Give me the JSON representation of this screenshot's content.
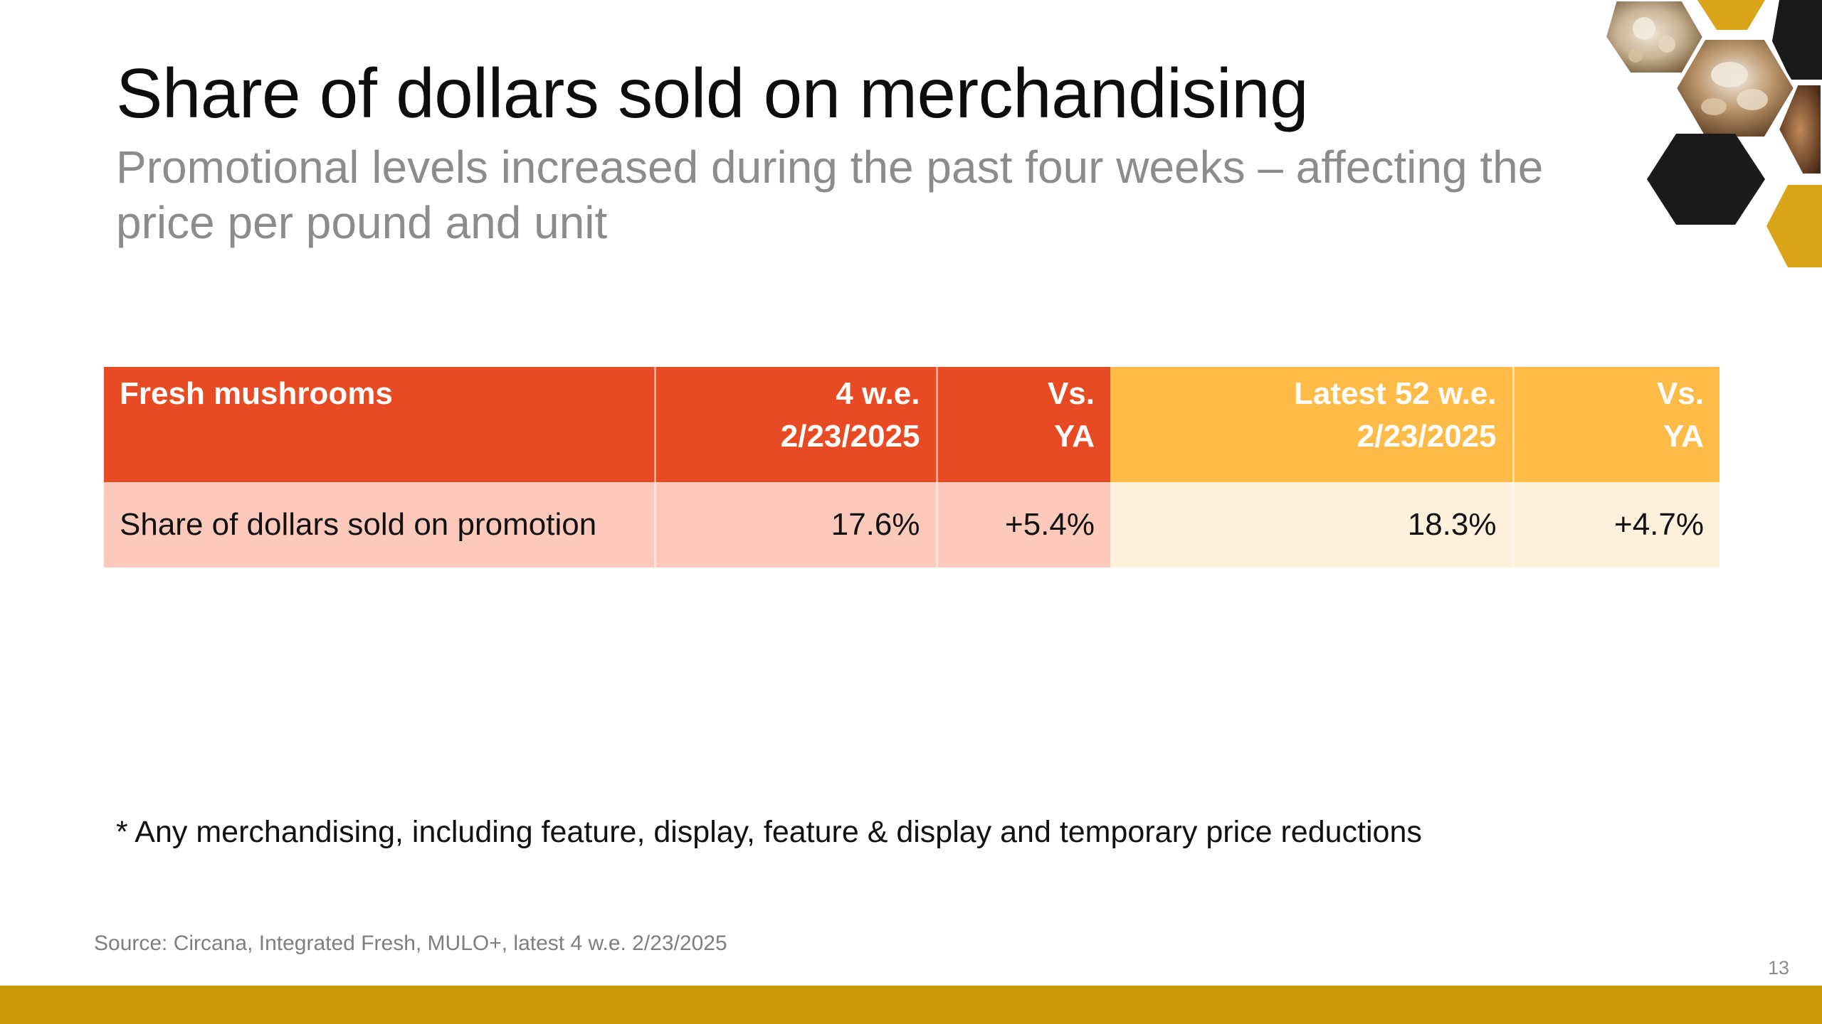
{
  "slide": {
    "title": "Share of dollars sold on merchandising",
    "subtitle": "Promotional levels increased during the past four weeks – affecting the price per pound and unit",
    "page_number": "13"
  },
  "table": {
    "headers": {
      "category": "Fresh mushrooms",
      "four_week_line1": "4 w.e.",
      "four_week_line2": "2/23/2025",
      "vs_ya_4_line1": "Vs.",
      "vs_ya_4_line2": "YA",
      "fifty_two_week_line1": "Latest 52 w.e.",
      "fifty_two_week_line2": "2/23/2025",
      "vs_ya_52_line1": "Vs.",
      "vs_ya_52_line2": "YA"
    },
    "rows": [
      {
        "label": "Share of dollars sold on promotion",
        "four_week": "17.6%",
        "vs_ya_4": "+5.4%",
        "fifty_two_week": "18.3%",
        "vs_ya_52": "+4.7%"
      }
    ]
  },
  "footnote": "* Any merchandising, including feature, display, feature & display and temporary price reductions",
  "source": "Source: Circana, Integrated Fresh, MULO+, latest 4 w.e. 2/23/2025",
  "colors": {
    "header_red": "#e84b23",
    "header_gold": "#ffbb48",
    "row_red": "#fdc9bb",
    "row_gold": "#fff1dc",
    "bottom_bar": "#c99a05",
    "hex_black": "#1a1a1a",
    "hex_gold": "#d9a418"
  }
}
